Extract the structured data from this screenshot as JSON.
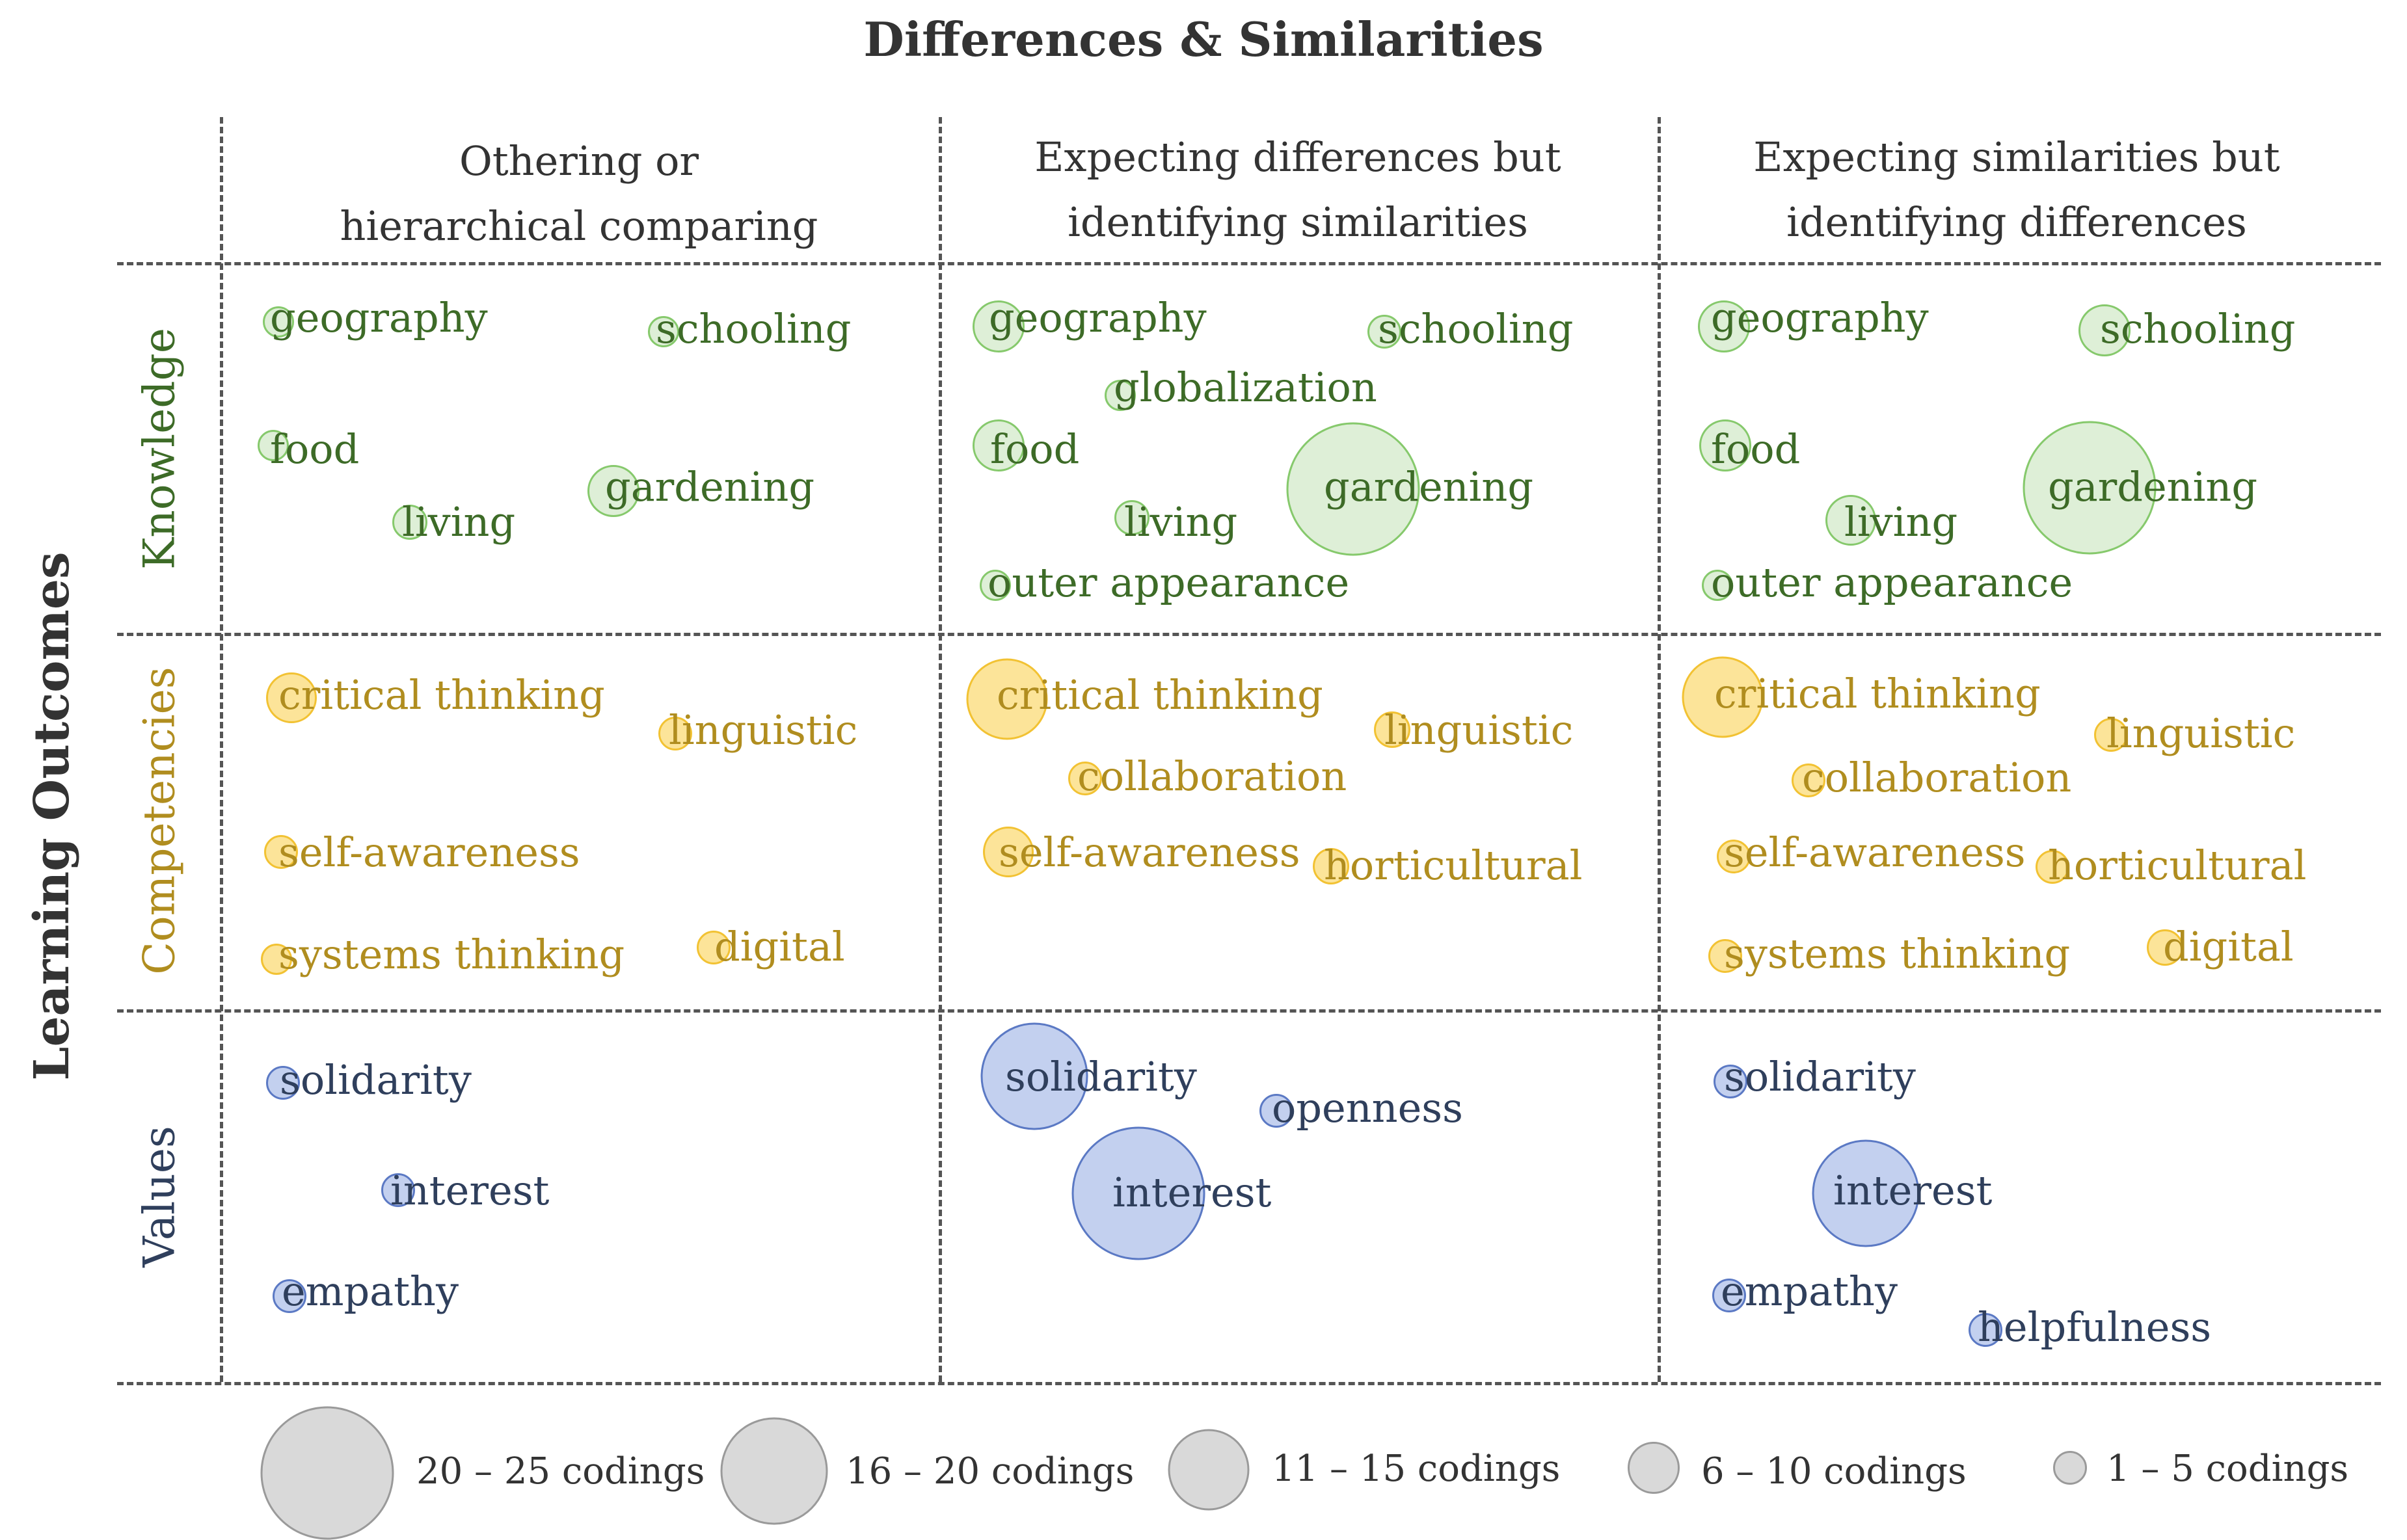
{
  "title": "Differences & Similarities",
  "side_label": "Learning Outcomes",
  "columns": [
    "Othering or\nhierarchical comparing",
    "Expecting differences but\nidentifying similarities",
    "Expecting similarities but\nidentifying differences"
  ],
  "col1_line1": "Othering or",
  "col1_line2": "hierarchical comparing",
  "col2_line1": "Expecting differences but",
  "col2_line2": "identifying similarities",
  "col3_line1": "Expecting similarities but",
  "col3_line2": "identifying differences",
  "rows": {
    "knowledge": "Knowledge",
    "competencies": "Competencies",
    "values": "Values"
  },
  "colors": {
    "knowledge": "#3d6b27",
    "competencies": "#b08d1f",
    "values": "#2f3f5c"
  },
  "size_classes": [
    "1 – 5 codings",
    "6 – 10 codings",
    "11 – 15 codings",
    "16 – 20 codings",
    "20 – 25 codings"
  ],
  "cells": {
    "k1": [
      "geography",
      "schooling",
      "food",
      "gardening",
      "living"
    ],
    "k2": [
      "geography",
      "schooling",
      "globalization",
      "food",
      "gardening",
      "living",
      "outer appearance"
    ],
    "k3": [
      "geography",
      "schooling",
      "food",
      "gardening",
      "living",
      "outer appearance"
    ],
    "c1": [
      "critical thinking",
      "linguistic",
      "self-awareness",
      "systems thinking",
      "digital"
    ],
    "c2": [
      "critical thinking",
      "linguistic",
      "collaboration",
      "self-awareness",
      "horticultural"
    ],
    "c3": [
      "critical thinking",
      "linguistic",
      "collaboration",
      "self-awareness",
      "horticultural",
      "systems thinking",
      "digital"
    ],
    "v1": [
      "solidarity",
      "interest",
      "empathy"
    ],
    "v2": [
      "solidarity",
      "openness",
      "interest"
    ],
    "v3": [
      "solidarity",
      "interest",
      "empathy",
      "helpfulness"
    ]
  },
  "legend": [
    "20 – 25 codings",
    "16 – 20 codings",
    "11 – 15 codings",
    "6 – 10 codings",
    "1 – 5 codings"
  ]
}
